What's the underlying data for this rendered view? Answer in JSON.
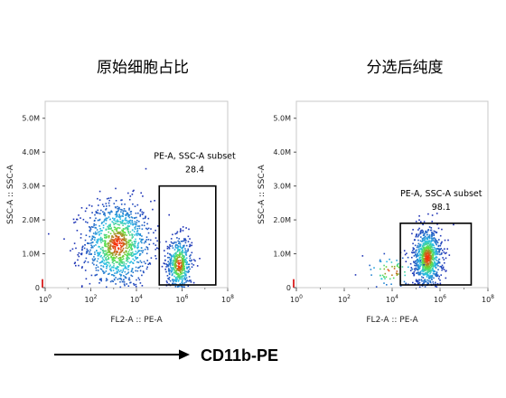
{
  "chart_data": [
    {
      "type": "scatter",
      "title": "原始细胞占比",
      "xlabel": "FL2-A :: PE-A",
      "ylabel": "SSC-A :: SSC-A",
      "x_scale": "log",
      "xlim": [
        1,
        100000000
      ],
      "x_ticks": [
        {
          "value": 1,
          "base": "10",
          "exp": "0"
        },
        {
          "value": 100,
          "base": "10",
          "exp": "2"
        },
        {
          "value": 10000,
          "base": "10",
          "exp": "4"
        },
        {
          "value": 1000000,
          "base": "10",
          "exp": "6"
        },
        {
          "value": 100000000,
          "base": "10",
          "exp": "8"
        }
      ],
      "ylim": [
        0,
        5500000
      ],
      "y_ticks": [
        {
          "value": 0,
          "label": "0"
        },
        {
          "value": 1000000,
          "label": "1.0M"
        },
        {
          "value": 2000000,
          "label": "2.0M"
        },
        {
          "value": 3000000,
          "label": "3.0M"
        },
        {
          "value": 4000000,
          "label": "4.0M"
        },
        {
          "value": 5000000,
          "label": "5.0M"
        }
      ],
      "gate": {
        "name": "PE-A, SSC-A subset",
        "value": "28.4",
        "x_range": [
          100000,
          30000000
        ],
        "y_range": [
          80000,
          3000000
        ]
      },
      "populations": [
        {
          "x_center": 1400,
          "x_spread_decades": 0.75,
          "y_center": 1300000,
          "y_spread": 650000,
          "count": 1100
        },
        {
          "x_center": 700000,
          "x_spread_decades": 0.28,
          "y_center": 700000,
          "y_spread": 420000,
          "count": 520
        }
      ],
      "grid": false,
      "legend": "none"
    },
    {
      "type": "scatter",
      "title": "分选后纯度",
      "xlabel": "FL2-A :: PE-A",
      "ylabel": "SSC-A :: SSC-A",
      "x_scale": "log",
      "xlim": [
        1,
        100000000
      ],
      "x_ticks": [
        {
          "value": 1,
          "base": "10",
          "exp": "0"
        },
        {
          "value": 100,
          "base": "10",
          "exp": "2"
        },
        {
          "value": 10000,
          "base": "10",
          "exp": "4"
        },
        {
          "value": 1000000,
          "base": "10",
          "exp": "6"
        },
        {
          "value": 100000000,
          "base": "10",
          "exp": "8"
        }
      ],
      "ylim": [
        0,
        5500000
      ],
      "y_ticks": [
        {
          "value": 0,
          "label": "0"
        },
        {
          "value": 1000000,
          "label": "1.0M"
        },
        {
          "value": 2000000,
          "label": "2.0M"
        },
        {
          "value": 3000000,
          "label": "3.0M"
        },
        {
          "value": 4000000,
          "label": "4.0M"
        },
        {
          "value": 5000000,
          "label": "5.0M"
        }
      ],
      "gate": {
        "name": "PE-A, SSC-A subset",
        "value": "98.1",
        "x_range": [
          22000,
          20000000
        ],
        "y_range": [
          80000,
          1900000
        ]
      },
      "populations": [
        {
          "x_center": 280000,
          "x_spread_decades": 0.3,
          "y_center": 900000,
          "y_spread": 450000,
          "count": 900
        },
        {
          "x_center": 9000,
          "x_spread_decades": 0.6,
          "y_center": 500000,
          "y_spread": 260000,
          "count": 70
        }
      ],
      "grid": false,
      "legend": "none"
    }
  ],
  "footer": {
    "marker_label": "CD11b-PE",
    "arrow_color": "#000000"
  },
  "colors": {
    "density_low": "#1e2fb4",
    "density_mid": "#2bc4e8",
    "density_high": "#5ee23c",
    "density_top": "#ff2a0a"
  }
}
